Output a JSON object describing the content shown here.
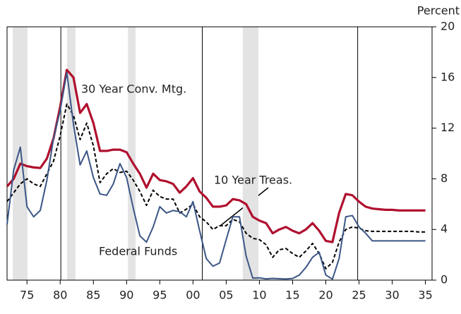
{
  "chart_data": {
    "type": "line",
    "y_axis_label": "Percent",
    "x": [
      1972,
      1973,
      1974,
      1975,
      1976,
      1977,
      1978,
      1979,
      1980,
      1981,
      1982,
      1983,
      1984,
      1985,
      1986,
      1987,
      1988,
      1989,
      1990,
      1991,
      1992,
      1993,
      1994,
      1995,
      1996,
      1997,
      1998,
      1999,
      2000,
      2001,
      2002,
      2003,
      2004,
      2005,
      2006,
      2007,
      2008,
      2009,
      2010,
      2011,
      2012,
      2013,
      2014,
      2015,
      2016,
      2017,
      2018,
      2019,
      2020,
      2021,
      2022,
      2023,
      2024,
      2025,
      2026,
      2027,
      2028,
      2029,
      2030,
      2031,
      2032,
      2033,
      2034,
      2035
    ],
    "series": [
      {
        "name": "30 Year Conv. Mtg.",
        "color": "#b0102e",
        "dash": false,
        "values": [
          7.4,
          8.0,
          9.2,
          9.0,
          8.9,
          8.85,
          9.6,
          11.2,
          13.7,
          16.6,
          16.0,
          13.2,
          13.9,
          12.4,
          10.2,
          10.2,
          10.3,
          10.3,
          10.1,
          9.2,
          8.4,
          7.3,
          8.4,
          7.9,
          7.8,
          7.6,
          6.9,
          7.4,
          8.05,
          7.0,
          6.5,
          5.8,
          5.8,
          5.9,
          6.4,
          6.3,
          6.0,
          5.0,
          4.7,
          4.5,
          3.7,
          4.0,
          4.2,
          3.9,
          3.7,
          4.0,
          4.5,
          3.9,
          3.1,
          3.0,
          5.3,
          6.8,
          6.7,
          6.2,
          5.8,
          5.65,
          5.6,
          5.55,
          5.55,
          5.5,
          5.5,
          5.5,
          5.5,
          5.5
        ]
      },
      {
        "name": "10 Year Treas.",
        "color": "#000000",
        "dash": true,
        "values": [
          6.2,
          6.9,
          7.6,
          8.0,
          7.6,
          7.4,
          8.4,
          9.4,
          11.4,
          13.9,
          13.0,
          11.1,
          12.4,
          10.6,
          7.7,
          8.4,
          8.8,
          8.5,
          8.6,
          7.9,
          7.0,
          5.9,
          7.1,
          6.6,
          6.4,
          6.4,
          5.3,
          5.6,
          6.0,
          5.0,
          4.6,
          4.0,
          4.3,
          4.3,
          4.8,
          4.6,
          3.7,
          3.3,
          3.2,
          2.8,
          1.8,
          2.4,
          2.5,
          2.1,
          1.8,
          2.3,
          2.9,
          2.1,
          0.9,
          1.4,
          3.0,
          4.0,
          4.2,
          4.1,
          3.9,
          3.85,
          3.85,
          3.85,
          3.85,
          3.85,
          3.85,
          3.85,
          3.8,
          3.8
        ]
      },
      {
        "name": "Federal Funds",
        "color": "#3b5686",
        "dash": false,
        "values": [
          4.4,
          8.7,
          10.5,
          5.8,
          5.0,
          5.5,
          7.9,
          11.2,
          13.4,
          16.4,
          12.3,
          9.1,
          10.2,
          8.1,
          6.8,
          6.7,
          7.6,
          9.2,
          8.1,
          5.7,
          3.5,
          3.0,
          4.2,
          5.8,
          5.3,
          5.5,
          5.4,
          5.0,
          6.2,
          3.9,
          1.7,
          1.1,
          1.35,
          3.2,
          5.0,
          5.0,
          1.9,
          0.16,
          0.18,
          0.1,
          0.14,
          0.11,
          0.09,
          0.13,
          0.4,
          1.0,
          1.8,
          2.2,
          0.4,
          0.08,
          1.7,
          5.0,
          5.1,
          4.2,
          3.7,
          3.1,
          3.1,
          3.1,
          3.1,
          3.1,
          3.1,
          3.1,
          3.1,
          3.1
        ]
      }
    ],
    "xlim": [
      1972,
      2036
    ],
    "xticks": [
      {
        "value": 1975,
        "label": "75"
      },
      {
        "value": 1980,
        "label": "80"
      },
      {
        "value": 1985,
        "label": "85"
      },
      {
        "value": 1990,
        "label": "90"
      },
      {
        "value": 1995,
        "label": "95"
      },
      {
        "value": 2000,
        "label": "00"
      },
      {
        "value": 2005,
        "label": "05"
      },
      {
        "value": 2010,
        "label": "10"
      },
      {
        "value": 2015,
        "label": "15"
      },
      {
        "value": 2020,
        "label": "20"
      },
      {
        "value": 2025,
        "label": "25"
      },
      {
        "value": 2030,
        "label": "30"
      },
      {
        "value": 2035,
        "label": "35"
      }
    ],
    "ylim": [
      0,
      20
    ],
    "yticks": [
      0,
      4,
      8,
      12,
      16,
      20
    ],
    "recessions": [
      [
        1972.85,
        1975.08
      ],
      [
        1981.04,
        1982.3
      ],
      [
        1990.2,
        1991.35
      ],
      [
        2007.5,
        2009.85
      ]
    ],
    "vlines": [
      1980.1,
      2001.4,
      2024.8
    ]
  }
}
